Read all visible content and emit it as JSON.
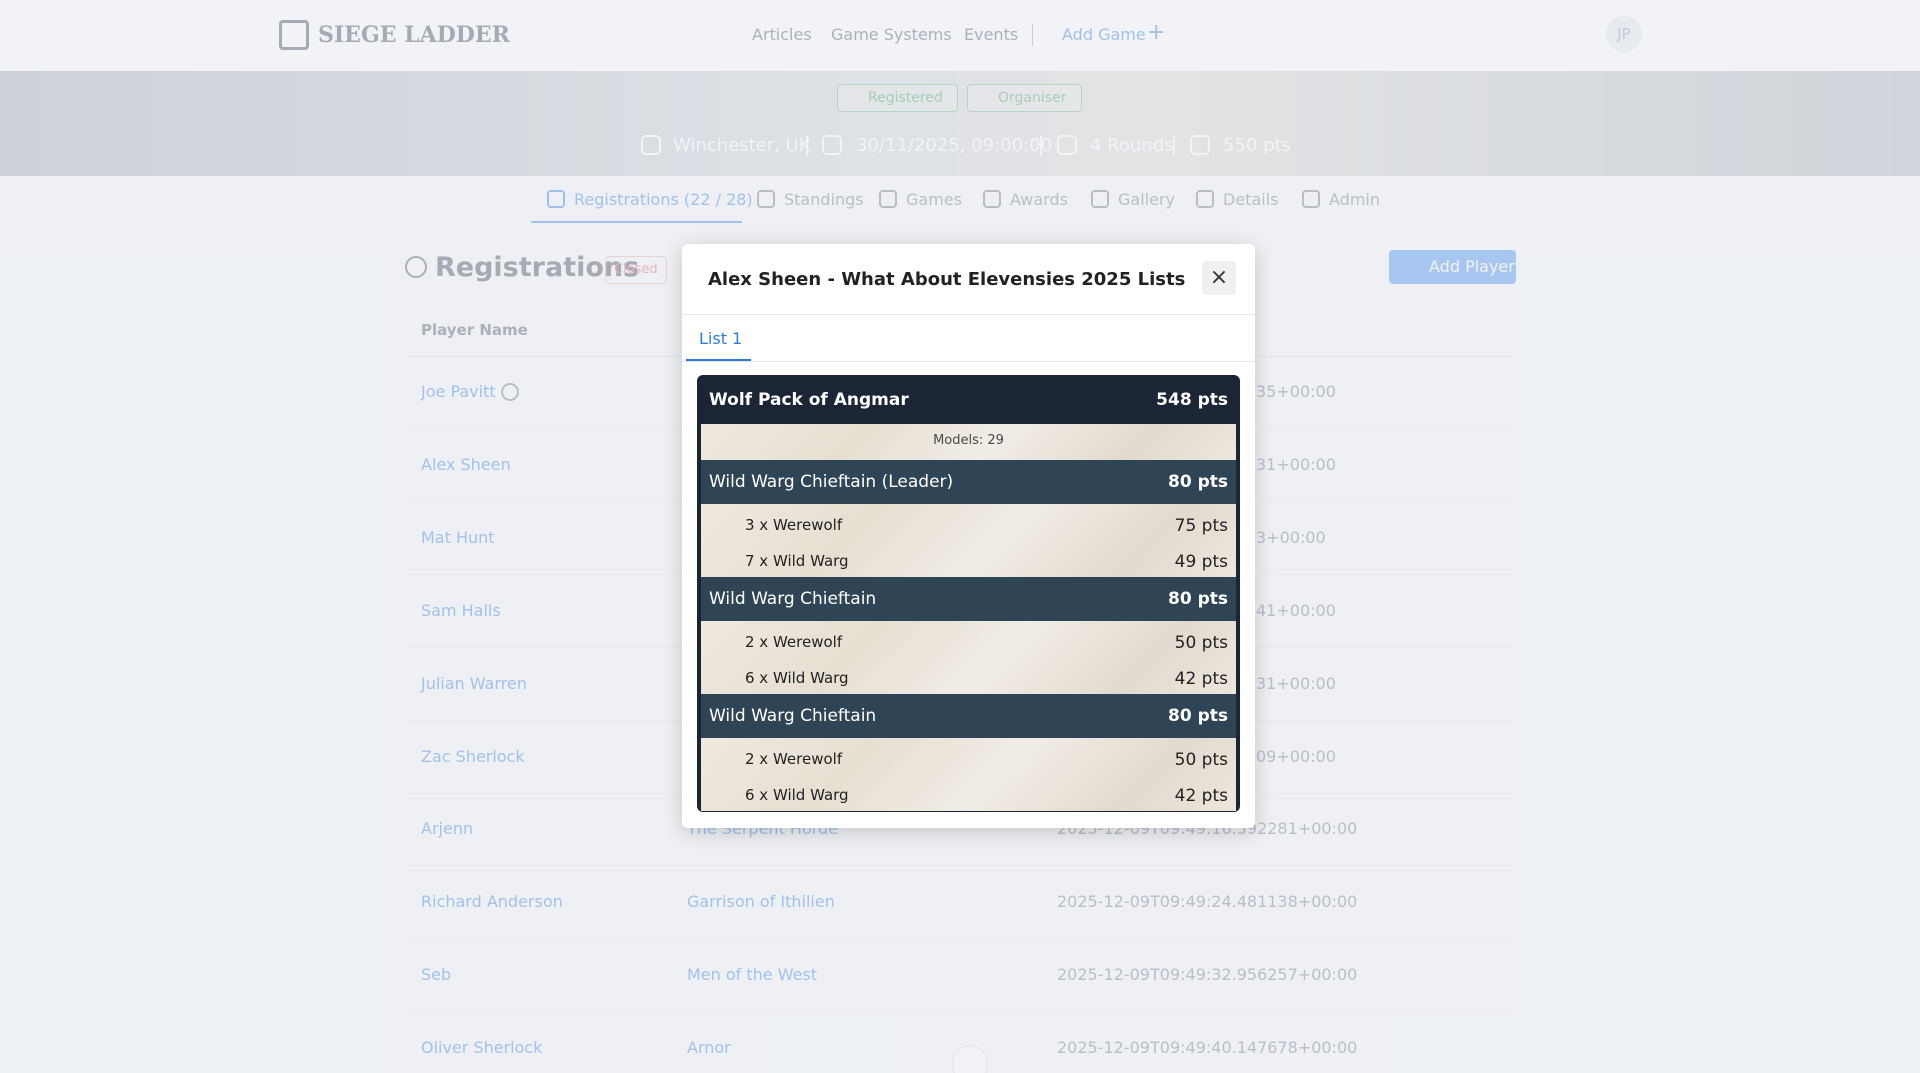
{
  "header": {
    "brand": "SIEGE LADDER",
    "nav": [
      "Articles",
      "Game Systems",
      "Events"
    ],
    "add_game": "Add Game",
    "avatar": "JP"
  },
  "banner": {
    "badges": [
      "Registered",
      "Organiser"
    ],
    "location": "Winchester, UK",
    "date": "30/11/2025, 09:00:00",
    "rounds": "4 Rounds",
    "points": "550 pts"
  },
  "tabs": [
    "Registrations (22 / 28)",
    "Standings",
    "Games",
    "Awards",
    "Gallery",
    "Details",
    "Admin"
  ],
  "section": {
    "title": "Registrations",
    "status": "Closed",
    "add_button": "Add Player"
  },
  "table": {
    "headers": [
      "Player Name"
    ],
    "rows": [
      {
        "name": "Joe Pavitt",
        "timestamp": "35+00:00"
      },
      {
        "name": "Alex Sheen",
        "timestamp": "31+00:00"
      },
      {
        "name": "Mat Hunt",
        "timestamp": "3+00:00"
      },
      {
        "name": "Sam Halls",
        "timestamp": "41+00:00"
      },
      {
        "name": "Julian Warren",
        "timestamp": "31+00:00"
      },
      {
        "name": "Zac Sherlock",
        "timestamp": "09+00:00"
      },
      {
        "name": "Arjenn",
        "army": "The Serpent Horde",
        "timestamp": "2025-12-09T09:49:16.592281+00:00"
      },
      {
        "name": "Richard Anderson",
        "army": "Garrison of Ithilien",
        "timestamp": "2025-12-09T09:49:24.481138+00:00"
      },
      {
        "name": "Seb",
        "army": "Men of the West",
        "timestamp": "2025-12-09T09:49:32.956257+00:00"
      },
      {
        "name": "Oliver Sherlock",
        "army": "Arnor",
        "timestamp": "2025-12-09T09:49:40.147678+00:00"
      }
    ]
  },
  "modal": {
    "title": "Alex Sheen - What About Elevensies 2025 Lists",
    "tab": "List 1",
    "list": {
      "name": "Wolf Pack of Angmar",
      "points": "548 pts",
      "models": "Models: 29",
      "groups": [
        {
          "leader": "Wild Warg Chieftain (Leader)",
          "points": "80 pts",
          "items": [
            {
              "name": "3 x Werewolf",
              "points": "75 pts"
            },
            {
              "name": "7 x Wild Warg",
              "points": "49 pts"
            }
          ]
        },
        {
          "leader": "Wild Warg Chieftain",
          "points": "80 pts",
          "items": [
            {
              "name": "2 x Werewolf",
              "points": "50 pts"
            },
            {
              "name": "6 x Wild Warg",
              "points": "42 pts"
            }
          ]
        },
        {
          "leader": "Wild Warg Chieftain",
          "points": "80 pts",
          "items": [
            {
              "name": "2 x Werewolf",
              "points": "50 pts"
            },
            {
              "name": "6 x Wild Warg",
              "points": "42 pts"
            }
          ]
        }
      ]
    }
  }
}
